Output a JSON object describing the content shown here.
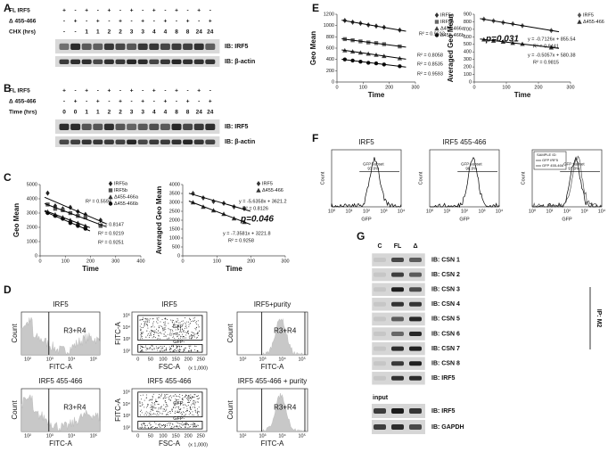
{
  "panel_labels": [
    "A",
    "B",
    "C",
    "D",
    "E",
    "F",
    "G"
  ],
  "panel_a": {
    "rows": [
      {
        "label": "FL IRF5",
        "cells": [
          "+",
          "-",
          "+",
          "-",
          "+",
          "-",
          "+",
          "-",
          "+",
          "-",
          "+",
          "-",
          "+",
          "-"
        ]
      },
      {
        "label": "Δ 455-466",
        "cells": [
          "-",
          "+",
          "-",
          "+",
          "-",
          "+",
          "-",
          "+",
          "-",
          "+",
          "-",
          "+",
          "-",
          "+"
        ]
      },
      {
        "label": "CHX (hrs)",
        "cells": [
          "-",
          "-",
          "1",
          "1",
          "2",
          "2",
          "3",
          "3",
          "4",
          "4",
          "8",
          "8",
          "24",
          "24"
        ]
      }
    ],
    "blots": [
      "IB: IRF5",
      "IB: β-actin"
    ]
  },
  "panel_b": {
    "rows": [
      {
        "label": "FL IRF5",
        "cells": [
          "+",
          "-",
          "+",
          "-",
          "+",
          "-",
          "+",
          "-",
          "+",
          "-",
          "+",
          "-",
          "+",
          "-"
        ]
      },
      {
        "label": "Δ 455-466",
        "cells": [
          "-",
          "+",
          "-",
          "+",
          "-",
          "+",
          "-",
          "+",
          "-",
          "+",
          "-",
          "+",
          "-",
          "+"
        ]
      },
      {
        "label": "Time (hrs)",
        "cells": [
          "0",
          "0",
          "1",
          "1",
          "2",
          "2",
          "3",
          "3",
          "4",
          "4",
          "8",
          "8",
          "24",
          "24"
        ]
      }
    ],
    "blots": [
      "IB: IRF5",
      "IB: β-actin"
    ]
  },
  "chart_data": [
    {
      "type": "scatter",
      "x_label": "Time",
      "y_label": "Geo Mean",
      "xlim": [
        0,
        400
      ],
      "xticks": [
        0,
        100,
        200,
        300,
        400
      ],
      "ylim": [
        0,
        5000
      ],
      "yticks": [
        0,
        1000,
        2000,
        3000,
        4000,
        5000
      ],
      "trendlines": true,
      "series": [
        {
          "name": "IRF5a",
          "marker": "diamond",
          "color": "#222222",
          "x": [
            30,
            60,
            90,
            120,
            150,
            180,
            240
          ],
          "values": [
            4400,
            3500,
            3300,
            3400,
            3100,
            2900,
            2500
          ]
        },
        {
          "name": "IRF5b",
          "marker": "square",
          "color": "#555555",
          "x": [
            30,
            60,
            90,
            120,
            150,
            180,
            240
          ],
          "values": [
            3600,
            3300,
            3200,
            3000,
            2800,
            2700,
            2100
          ]
        },
        {
          "name": "Δ455-466a",
          "marker": "triangle",
          "color": "#333333",
          "x": [
            30,
            60,
            90,
            120,
            150,
            180
          ],
          "values": [
            3100,
            2900,
            2700,
            2500,
            2300,
            2100
          ]
        },
        {
          "name": "Δ455-466b",
          "marker": "circle",
          "color": "#111111",
          "x": [
            30,
            60,
            90,
            120,
            150,
            180
          ],
          "values": [
            3000,
            2800,
            2600,
            2300,
            2100,
            1900
          ]
        }
      ],
      "annotations": [
        "R² = 0.5594",
        "R² = 0.8147",
        "R² = 0.9219",
        "R² = 0.9251"
      ]
    },
    {
      "type": "scatter",
      "x_label": "Time",
      "y_label": "Averaged Geo Mean",
      "xlim": [
        0,
        300
      ],
      "xticks": [
        0,
        100,
        200,
        300
      ],
      "ylim": [
        0,
        4000
      ],
      "yticks": [
        0,
        500,
        1000,
        1500,
        2000,
        2500,
        3000,
        3500,
        4000
      ],
      "trendlines": true,
      "series": [
        {
          "name": "IRF5",
          "marker": "diamond",
          "color": "#333333",
          "x": [
            30,
            60,
            90,
            120,
            150,
            180
          ],
          "values": [
            3500,
            3250,
            3050,
            2950,
            2750,
            2650
          ]
        },
        {
          "name": "Δ455-466",
          "marker": "triangle",
          "color": "#333333",
          "x": [
            30,
            60,
            90,
            120,
            150,
            180
          ],
          "values": [
            3000,
            2750,
            2550,
            2350,
            2100,
            1900
          ]
        }
      ],
      "annotations": [
        "y = -5.6358x + 3621.2",
        "R² = 0.8126",
        "p=0.046",
        "y = -7.3581x + 3221.8",
        "R² = 0.9258"
      ]
    },
    {
      "type": "scatter",
      "x_label": "Time",
      "y_label": "Geo Mean",
      "xlim": [
        0,
        300
      ],
      "xticks": [
        0,
        100,
        200,
        300
      ],
      "ylim": [
        0,
        1200
      ],
      "yticks": [
        0,
        200,
        400,
        600,
        800,
        1000,
        1200
      ],
      "trendlines": true,
      "series": [
        {
          "name": "IRF5a",
          "marker": "diamond",
          "color": "#333333",
          "x": [
            30,
            60,
            90,
            120,
            150,
            180,
            240
          ],
          "values": [
            1090,
            1060,
            1040,
            1010,
            990,
            970,
            920
          ]
        },
        {
          "name": "IRF5b",
          "marker": "square",
          "color": "#666666",
          "x": [
            30,
            60,
            90,
            120,
            150,
            180,
            240
          ],
          "values": [
            760,
            740,
            720,
            700,
            690,
            670,
            630
          ]
        },
        {
          "name": "Δ455-466a",
          "marker": "triangle",
          "color": "#444444",
          "x": [
            30,
            60,
            90,
            120,
            150,
            180,
            240
          ],
          "values": [
            560,
            540,
            520,
            500,
            480,
            460,
            420
          ]
        },
        {
          "name": "Δ455-466b",
          "marker": "circle",
          "color": "#111111",
          "x": [
            30,
            60,
            90,
            120,
            150,
            180,
            240
          ],
          "values": [
            400,
            380,
            360,
            340,
            330,
            310,
            280
          ]
        }
      ],
      "annotations": [
        "R² = 0.9612",
        "R² = 0.8058",
        "R² = 0.8535",
        "R² = 0.9593"
      ]
    },
    {
      "type": "scatter",
      "x_label": "Time",
      "y_label": "Averaged Geo Mean",
      "xlim": [
        0,
        300
      ],
      "xticks": [
        0,
        100,
        200,
        300
      ],
      "ylim": [
        0,
        900
      ],
      "yticks": [
        0,
        100,
        200,
        300,
        400,
        500,
        600,
        700,
        800,
        900
      ],
      "trendlines": true,
      "series": [
        {
          "name": "IRF5",
          "marker": "diamond",
          "color": "#555555",
          "x": [
            30,
            60,
            90,
            120,
            150,
            240
          ],
          "values": [
            835,
            812,
            790,
            772,
            748,
            684
          ]
        },
        {
          "name": "Δ455-466",
          "marker": "triangle",
          "color": "#333333",
          "x": [
            30,
            60,
            90,
            120,
            150,
            240
          ],
          "values": [
            565,
            549,
            536,
            519,
            505,
            459
          ]
        }
      ],
      "annotations": [
        "p=0.031",
        "y = -0.7126x + 855.54",
        "R² = 0.9441",
        "y = -0.5057x + 580.38",
        "R² = 0.9815"
      ]
    }
  ],
  "panel_d": {
    "plots": [
      {
        "title": "IRF5",
        "kind": "histogram",
        "x_label": "FITC-A",
        "y_label": "Count",
        "x_ticks": [
          "10²",
          "10³",
          "10⁴",
          "10⁵"
        ],
        "gates": [
          "R3+R4"
        ]
      },
      {
        "title": "IRF5",
        "kind": "dot",
        "x_label": "FSC-A",
        "y_label": "FITC-A",
        "x_ticks": [
          "0",
          "50",
          "100",
          "150",
          "200",
          "250"
        ],
        "x_unit": "(x 1,000)",
        "y_ticks": [
          "10²",
          "10³",
          "10⁴",
          "10⁵"
        ],
        "gates": [
          "GFP",
          "GFP-"
        ]
      },
      {
        "title": "IRF5+purity",
        "kind": "histogram",
        "x_label": "FITC-A",
        "y_label": "Count",
        "x_ticks": [
          "10²",
          "10³",
          "10⁴",
          "10⁵"
        ],
        "gates": [
          "R3+R4"
        ]
      },
      {
        "title": "IRF5 455-466",
        "kind": "histogram",
        "x_label": "FITC-A",
        "y_label": "Count",
        "x_ticks": [
          "10²",
          "10³",
          "10⁴",
          "10⁵"
        ],
        "gates": [
          "R3+R4"
        ]
      },
      {
        "title": "IRF5 455-466",
        "kind": "dot",
        "x_label": "FSC-A",
        "y_label": "FITC-A",
        "x_ticks": [
          "0",
          "50",
          "100",
          "150",
          "200",
          "250"
        ],
        "x_unit": "(x 1,000)",
        "y_ticks": [
          "10²",
          "10³",
          "10⁴",
          "10⁵"
        ],
        "gates": [
          "GFP",
          "GFP-"
        ]
      },
      {
        "title": "IRF5 455-466 + purity",
        "kind": "histogram",
        "x_label": "FITC-A",
        "y_label": "Count",
        "x_ticks": [
          "10²",
          "10³",
          "10⁴",
          "10⁵"
        ],
        "gates": [
          "R3+R4"
        ]
      }
    ]
  },
  "panel_f": {
    "y_label": "Count",
    "x_label": "GFP",
    "x_ticks": [
      "10⁰",
      "10¹",
      "10²",
      "10³",
      "10⁴"
    ],
    "gate": "GFP subset",
    "plots": [
      {
        "title": "IRF5",
        "percent": "97.0%"
      },
      {
        "title": "IRF5 455-466",
        "percent": "98.0%"
      },
      {
        "legend": [
          "SAMPLE ID:",
          "GFP IRF5",
          "GFP 455-466"
        ],
        "percent": "97.0%"
      }
    ]
  },
  "panel_g": {
    "columns": [
      "C",
      "FL",
      "Δ"
    ],
    "ip_label": "IP: M2",
    "ip_blots": [
      "IB: CSN 1",
      "IB: CSN 2",
      "IB: CSN 3",
      "IB: CSN 4",
      "IB: CSN 5",
      "IB: CSN 6",
      "IB: CSN 7",
      "IB: CSN 8",
      "IB: IRF5"
    ],
    "input_label": "input",
    "input_blots": [
      "IB: IRF5",
      "IB: GAPDH"
    ]
  }
}
